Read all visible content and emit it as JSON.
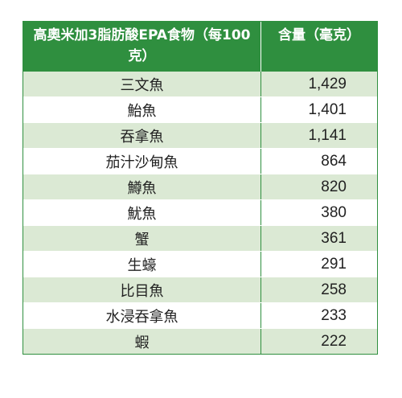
{
  "table": {
    "headers": {
      "food": "高奧米加3脂肪酸EPA食物（每100克）",
      "amount": "含量（毫克）"
    },
    "rows": [
      {
        "name": "三文魚",
        "value": "1,429"
      },
      {
        "name": "鮐魚",
        "value": "1,401"
      },
      {
        "name": "吞拿魚",
        "value": "1,141"
      },
      {
        "name": "茄汁沙甸魚",
        "value": "864"
      },
      {
        "name": "鱒魚",
        "value": "820"
      },
      {
        "name": "魷魚",
        "value": "380"
      },
      {
        "name": "蟹",
        "value": "361"
      },
      {
        "name": "生蠔",
        "value": "291"
      },
      {
        "name": "比目魚",
        "value": "258"
      },
      {
        "name": "水浸吞拿魚",
        "value": "233"
      },
      {
        "name": "蝦",
        "value": "222"
      }
    ]
  },
  "colors": {
    "header_background": "#2f8f3f",
    "alt_row_background": "#dbe9d4"
  }
}
